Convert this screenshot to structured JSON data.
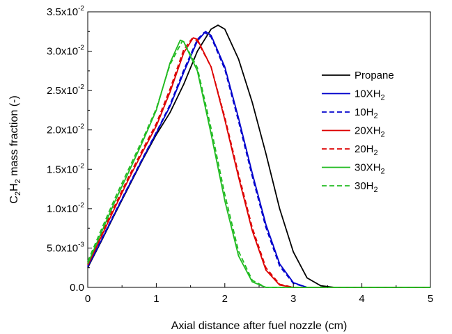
{
  "chart_data": {
    "type": "line",
    "title": "",
    "xlabel": "Axial distance after fuel nozzle  (cm)",
    "ylabel": {
      "base": "C",
      "sub1": "2",
      "mid": "H",
      "sub2": "2",
      "rest": " mass fraction (-)"
    },
    "xlim": [
      0,
      5
    ],
    "ylim": [
      0,
      0.035
    ],
    "x_ticks": [
      {
        "value": 0,
        "label": "0"
      },
      {
        "value": 1,
        "label": "1"
      },
      {
        "value": 2,
        "label": "2"
      },
      {
        "value": 3,
        "label": "3"
      },
      {
        "value": 4,
        "label": "4"
      },
      {
        "value": 5,
        "label": "5"
      }
    ],
    "y_ticks": [
      {
        "value": 0,
        "label": "0.0"
      },
      {
        "value": 0.005,
        "mant": "5.0x10",
        "exp": "-3"
      },
      {
        "value": 0.01,
        "mant": "1.0x10",
        "exp": "-2"
      },
      {
        "value": 0.015,
        "mant": "1.5x10",
        "exp": "-2"
      },
      {
        "value": 0.02,
        "mant": "2.0x10",
        "exp": "-2"
      },
      {
        "value": 0.025,
        "mant": "2.5x10",
        "exp": "-2"
      },
      {
        "value": 0.03,
        "mant": "3.0x10",
        "exp": "-2"
      },
      {
        "value": 0.035,
        "mant": "3.5x10",
        "exp": "-2"
      }
    ],
    "legend_position": "right",
    "series": [
      {
        "name": "Propane",
        "label": {
          "base": "Propane",
          "sub": ""
        },
        "color": "#000000",
        "style": "solid",
        "x": [
          0,
          0.2,
          0.4,
          0.6,
          0.8,
          1.0,
          1.2,
          1.4,
          1.6,
          1.8,
          1.9,
          2.0,
          2.2,
          2.4,
          2.6,
          2.8,
          3.0,
          3.2,
          3.4,
          3.6,
          5.0
        ],
        "y": [
          0.0025,
          0.0059,
          0.0094,
          0.0128,
          0.0162,
          0.0194,
          0.0222,
          0.0258,
          0.03,
          0.0328,
          0.0333,
          0.0328,
          0.029,
          0.0235,
          0.017,
          0.01,
          0.0045,
          0.0012,
          0.0002,
          0,
          0
        ]
      },
      {
        "name": "10XH2",
        "label": {
          "base": "10XH",
          "sub": "2"
        },
        "color": "#0000CC",
        "style": "solid",
        "x": [
          0,
          0.2,
          0.4,
          0.6,
          0.8,
          1.0,
          1.2,
          1.4,
          1.6,
          1.72,
          1.8,
          2.0,
          2.2,
          2.4,
          2.6,
          2.8,
          3.0,
          3.2,
          3.4,
          5.0
        ],
        "y": [
          0.0026,
          0.006,
          0.0095,
          0.0129,
          0.0163,
          0.0196,
          0.023,
          0.0273,
          0.0313,
          0.0325,
          0.032,
          0.028,
          0.0215,
          0.0145,
          0.008,
          0.003,
          0.0006,
          0,
          0,
          0
        ]
      },
      {
        "name": "10H2",
        "label": {
          "base": "10H",
          "sub": "2"
        },
        "color": "#0000CC",
        "style": "dashed",
        "x": [
          0,
          0.2,
          0.4,
          0.6,
          0.8,
          1.0,
          1.2,
          1.4,
          1.6,
          1.7,
          1.8,
          2.0,
          2.2,
          2.4,
          2.6,
          2.8,
          3.0,
          3.2,
          3.4,
          5.0
        ],
        "y": [
          0.0027,
          0.0061,
          0.0096,
          0.013,
          0.0164,
          0.0197,
          0.0232,
          0.0276,
          0.0315,
          0.0324,
          0.0318,
          0.0277,
          0.0211,
          0.0141,
          0.0076,
          0.0027,
          0.0005,
          0,
          0,
          0
        ]
      },
      {
        "name": "20XH2",
        "label": {
          "base": "20XH",
          "sub": "2"
        },
        "color": "#DD0000",
        "style": "solid",
        "x": [
          0,
          0.2,
          0.4,
          0.6,
          0.8,
          1.0,
          1.2,
          1.4,
          1.54,
          1.6,
          1.8,
          2.0,
          2.2,
          2.4,
          2.6,
          2.8,
          3.0,
          5.0
        ],
        "y": [
          0.0028,
          0.0065,
          0.0102,
          0.0138,
          0.0172,
          0.0205,
          0.0248,
          0.0298,
          0.0317,
          0.0315,
          0.028,
          0.0213,
          0.014,
          0.0072,
          0.0022,
          0.0003,
          0,
          0
        ]
      },
      {
        "name": "20H2",
        "label": {
          "base": "20H",
          "sub": "2"
        },
        "color": "#DD0000",
        "style": "dashed",
        "x": [
          0,
          0.2,
          0.4,
          0.6,
          0.8,
          1.0,
          1.2,
          1.4,
          1.52,
          1.6,
          1.8,
          2.0,
          2.2,
          2.4,
          2.6,
          2.8,
          3.0,
          5.0
        ],
        "y": [
          0.003,
          0.0068,
          0.0105,
          0.0141,
          0.0175,
          0.0208,
          0.0252,
          0.0302,
          0.0316,
          0.0313,
          0.028,
          0.0216,
          0.0144,
          0.0076,
          0.0025,
          0.0004,
          0,
          0
        ]
      },
      {
        "name": "30XH2",
        "label": {
          "base": "30XH",
          "sub": "2"
        },
        "color": "#22BB22",
        "style": "solid",
        "x": [
          0,
          0.2,
          0.4,
          0.6,
          0.8,
          1.0,
          1.2,
          1.35,
          1.4,
          1.6,
          1.8,
          2.0,
          2.2,
          2.4,
          2.6,
          5.0
        ],
        "y": [
          0.003,
          0.007,
          0.011,
          0.0147,
          0.0185,
          0.0225,
          0.0285,
          0.0314,
          0.0312,
          0.0275,
          0.0195,
          0.011,
          0.004,
          0.0007,
          0,
          0
        ]
      },
      {
        "name": "30H2",
        "label": {
          "base": "30H",
          "sub": "2"
        },
        "color": "#22BB22",
        "style": "dashed",
        "x": [
          0,
          0.2,
          0.4,
          0.6,
          0.8,
          1.0,
          1.2,
          1.38,
          1.4,
          1.6,
          1.8,
          2.0,
          2.2,
          2.4,
          2.6,
          5.0
        ],
        "y": [
          0.0033,
          0.0074,
          0.0114,
          0.0151,
          0.0188,
          0.0227,
          0.0283,
          0.0313,
          0.0312,
          0.0279,
          0.0202,
          0.0118,
          0.0046,
          0.0009,
          0,
          0
        ]
      }
    ]
  }
}
